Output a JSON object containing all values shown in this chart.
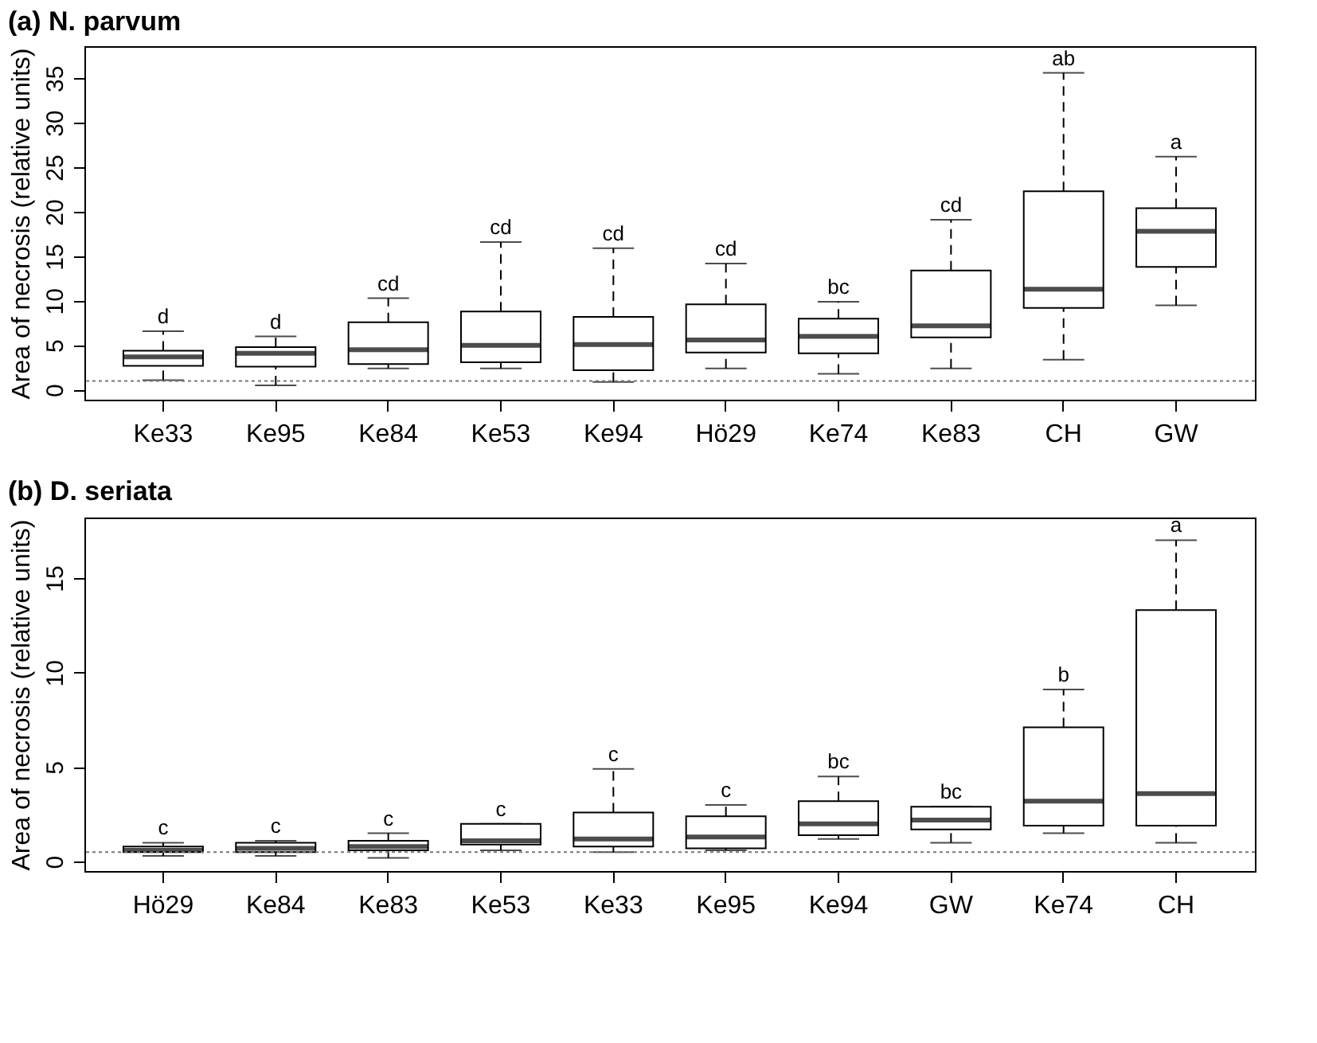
{
  "chart_data": [
    {
      "type": "box",
      "title": "(a) N. parvum",
      "ylabel": "Area of necrosis (relative units)",
      "categories": [
        "Ke33",
        "Ke95",
        "Ke84",
        "Ke53",
        "Ke94",
        "Hö29",
        "Ke74",
        "Ke83",
        "CH",
        "GW"
      ],
      "boxes": [
        {
          "low": 1.1,
          "q1": 2.7,
          "median": 3.7,
          "q3": 4.4,
          "high": 6.6
        },
        {
          "low": 0.5,
          "q1": 2.6,
          "median": 4.1,
          "q3": 4.8,
          "high": 6.0
        },
        {
          "low": 2.4,
          "q1": 2.9,
          "median": 4.5,
          "q3": 7.6,
          "high": 10.3
        },
        {
          "low": 2.4,
          "q1": 3.1,
          "median": 5.0,
          "q3": 8.8,
          "high": 16.6
        },
        {
          "low": 0.9,
          "q1": 2.2,
          "median": 5.1,
          "q3": 8.2,
          "high": 15.9
        },
        {
          "low": 2.4,
          "q1": 4.2,
          "median": 5.6,
          "q3": 9.6,
          "high": 14.2
        },
        {
          "low": 1.8,
          "q1": 4.1,
          "median": 6.0,
          "q3": 8.0,
          "high": 9.9
        },
        {
          "low": 2.4,
          "q1": 5.9,
          "median": 7.2,
          "q3": 13.4,
          "high": 19.1
        },
        {
          "low": 3.4,
          "q1": 9.2,
          "median": 11.3,
          "q3": 22.3,
          "high": 35.6
        },
        {
          "low": 9.5,
          "q1": 13.8,
          "median": 17.8,
          "q3": 20.4,
          "high": 26.2
        }
      ],
      "ylim": [
        -1.1,
        38.6
      ],
      "yticks": [
        0,
        5,
        10,
        15,
        20,
        25,
        30,
        35
      ],
      "ref_lines": [
        {
          "axis": "y",
          "value": 1.0,
          "line_style": "dotted",
          "color": "#777777"
        }
      ],
      "annotations": [
        {
          "text": "d",
          "x": "Ke33",
          "y": 6.6
        },
        {
          "text": "d",
          "x": "Ke95",
          "y": 6.0
        },
        {
          "text": "cd",
          "x": "Ke84",
          "y": 10.3
        },
        {
          "text": "cd",
          "x": "Ke53",
          "y": 16.6
        },
        {
          "text": "cd",
          "x": "Ke94",
          "y": 15.9
        },
        {
          "text": "cd",
          "x": "Hö29",
          "y": 14.2
        },
        {
          "text": "bc",
          "x": "Ke74",
          "y": 9.9
        },
        {
          "text": "cd",
          "x": "Ke83",
          "y": 19.1
        },
        {
          "text": "ab",
          "x": "CH",
          "y": 35.6
        },
        {
          "text": "a",
          "x": "GW",
          "y": 26.2
        }
      ]
    },
    {
      "type": "box",
      "title": "(b) D. seriata",
      "ylabel": "Area of necrosis (relative units)",
      "categories": [
        "Hö29",
        "Ke84",
        "Ke83",
        "Ke53",
        "Ke33",
        "Ke95",
        "Ke94",
        "GW",
        "Ke74",
        "CH"
      ],
      "boxes": [
        {
          "low": 0.3,
          "q1": 0.5,
          "median": 0.6,
          "q3": 0.8,
          "high": 1.0
        },
        {
          "low": 0.3,
          "q1": 0.5,
          "median": 0.7,
          "q3": 1.0,
          "high": 1.1
        },
        {
          "low": 0.2,
          "q1": 0.6,
          "median": 0.8,
          "q3": 1.1,
          "high": 1.5
        },
        {
          "low": 0.6,
          "q1": 0.9,
          "median": 1.1,
          "q3": 2.0,
          "high": 2.0
        },
        {
          "low": 0.5,
          "q1": 0.8,
          "median": 1.2,
          "q3": 2.6,
          "high": 4.9
        },
        {
          "low": 0.6,
          "q1": 0.7,
          "median": 1.3,
          "q3": 2.4,
          "high": 3.0
        },
        {
          "low": 1.2,
          "q1": 1.4,
          "median": 2.0,
          "q3": 3.2,
          "high": 4.5
        },
        {
          "low": 1.0,
          "q1": 1.7,
          "median": 2.2,
          "q3": 2.9,
          "high": 2.9
        },
        {
          "low": 1.5,
          "q1": 1.9,
          "median": 3.2,
          "q3": 7.1,
          "high": 9.1
        },
        {
          "low": 1.0,
          "q1": 1.9,
          "median": 3.6,
          "q3": 13.3,
          "high": 17.0
        }
      ],
      "ylim": [
        -0.5,
        18.2
      ],
      "yticks": [
        0,
        5,
        10,
        15
      ],
      "ref_lines": [
        {
          "axis": "y",
          "value": 0.5,
          "line_style": "dotted",
          "color": "#777777"
        }
      ],
      "annotations": [
        {
          "text": "c",
          "x": "Hö29",
          "y": 1.0
        },
        {
          "text": "c",
          "x": "Ke84",
          "y": 1.1
        },
        {
          "text": "c",
          "x": "Ke83",
          "y": 1.5
        },
        {
          "text": "c",
          "x": "Ke53",
          "y": 2.0
        },
        {
          "text": "c",
          "x": "Ke33",
          "y": 4.9
        },
        {
          "text": "c",
          "x": "Ke95",
          "y": 3.0
        },
        {
          "text": "bc",
          "x": "Ke94",
          "y": 4.5
        },
        {
          "text": "bc",
          "x": "GW",
          "y": 2.9
        },
        {
          "text": "b",
          "x": "Ke74",
          "y": 9.1
        },
        {
          "text": "a",
          "x": "CH",
          "y": 17.0
        }
      ]
    }
  ]
}
